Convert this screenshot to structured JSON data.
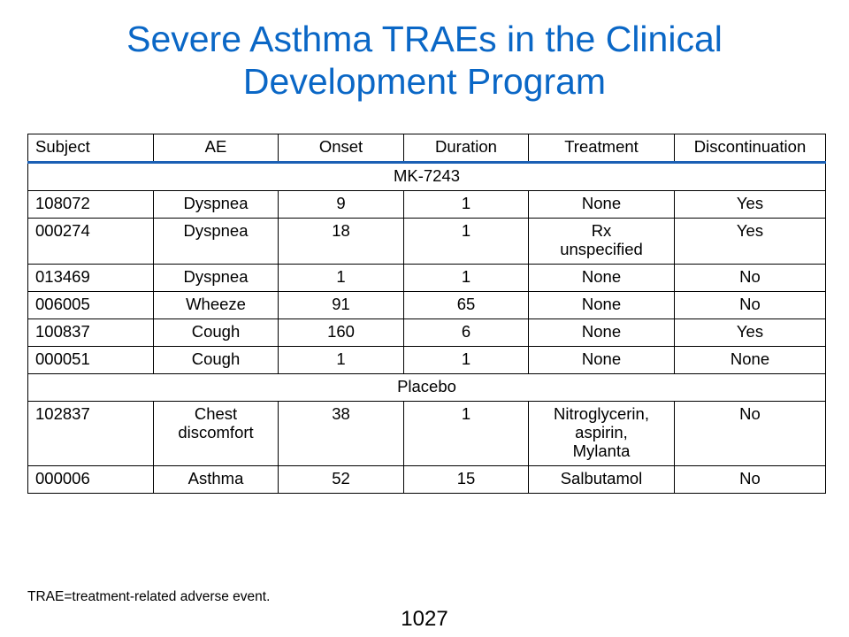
{
  "title": {
    "line1": "Severe Asthma TRAEs in the Clinical",
    "line2": "Development Program"
  },
  "colors": {
    "title": "#0a67c6",
    "header_rule": "#1a5fb4"
  },
  "table": {
    "headers": [
      "Subject",
      "AE",
      "Onset",
      "Duration",
      "Treatment",
      "Discontinuation"
    ],
    "groups": [
      {
        "label": "MK-7243",
        "rows": [
          [
            "108072",
            "Dyspnea",
            "9",
            "1",
            "None",
            "Yes"
          ],
          [
            "000274",
            "Dyspnea",
            "18",
            "1",
            "Rx\nunspecified",
            "Yes"
          ],
          [
            "013469",
            "Dyspnea",
            "1",
            "1",
            "None",
            "No"
          ],
          [
            "006005",
            "Wheeze",
            "91",
            "65",
            "None",
            "No"
          ],
          [
            "100837",
            "Cough",
            "160",
            "6",
            "None",
            "Yes"
          ],
          [
            "000051",
            "Cough",
            "1",
            "1",
            "None",
            "None"
          ]
        ]
      },
      {
        "label": "Placebo",
        "rows": [
          [
            "102837",
            "Chest\ndiscomfort",
            "38",
            "1",
            "Nitroglycerin,\naspirin,\nMylanta",
            "No"
          ],
          [
            "000006",
            "Asthma",
            "52",
            "15",
            "Salbutamol",
            "No"
          ]
        ]
      }
    ]
  },
  "footnote": "TRAE=treatment-related adverse event.",
  "page_number": "1027"
}
